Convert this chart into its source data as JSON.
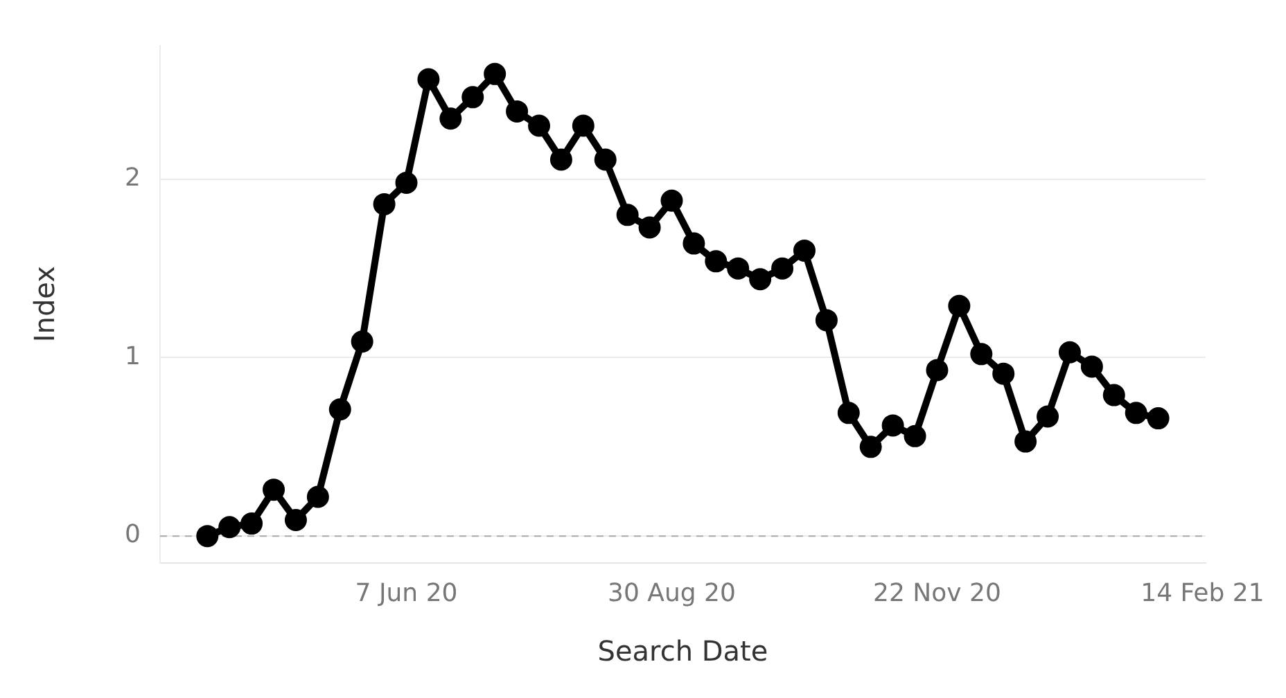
{
  "chart_data": {
    "type": "line",
    "xlabel": "Search Date",
    "ylabel": "Index",
    "x": [
      "2020-04-05",
      "2020-04-12",
      "2020-04-19",
      "2020-04-26",
      "2020-05-03",
      "2020-05-10",
      "2020-05-17",
      "2020-05-24",
      "2020-05-31",
      "2020-06-07",
      "2020-06-14",
      "2020-06-21",
      "2020-06-28",
      "2020-07-05",
      "2020-07-12",
      "2020-07-19",
      "2020-07-26",
      "2020-08-02",
      "2020-08-09",
      "2020-08-16",
      "2020-08-23",
      "2020-08-30",
      "2020-09-06",
      "2020-09-13",
      "2020-09-20",
      "2020-09-27",
      "2020-10-04",
      "2020-10-11",
      "2020-10-18",
      "2020-10-25",
      "2020-11-01",
      "2020-11-08",
      "2020-11-15",
      "2020-11-22",
      "2020-11-29",
      "2020-12-06",
      "2020-12-13",
      "2020-12-20",
      "2020-12-27",
      "2021-01-03",
      "2021-01-10",
      "2021-01-17",
      "2021-01-24",
      "2021-01-31"
    ],
    "series": [
      {
        "color": "#000000",
        "values": [
          0.0,
          0.05,
          0.07,
          0.26,
          0.09,
          0.22,
          0.71,
          1.09,
          1.86,
          1.98,
          2.56,
          2.34,
          2.46,
          2.59,
          2.38,
          2.3,
          2.11,
          2.3,
          2.11,
          1.8,
          1.73,
          1.88,
          1.64,
          1.54,
          1.5,
          1.44,
          1.5,
          1.6,
          1.21,
          0.69,
          0.5,
          0.62,
          0.56,
          0.93,
          1.29,
          1.02,
          0.91,
          0.53,
          0.67,
          1.03,
          0.95,
          0.79,
          0.69,
          0.66
        ]
      }
    ],
    "xlim": [
      "2020-03-21",
      "2021-02-15"
    ],
    "xticks": [
      {
        "value": "2020-06-07",
        "label": "7 Jun 20"
      },
      {
        "value": "2020-08-30",
        "label": "30 Aug 20"
      },
      {
        "value": "2020-11-22",
        "label": "22 Nov 20"
      },
      {
        "value": "2021-02-14",
        "label": "14 Feb 21"
      }
    ],
    "ylim": [
      -0.15,
      2.75
    ],
    "yticks": [
      0,
      1,
      2
    ],
    "ref_lines": [
      {
        "axis": "y",
        "value": 0,
        "color": "#aaaaaa",
        "line_style": "dashed"
      }
    ],
    "grid": "y",
    "legend": false,
    "marker": "circle",
    "line_style": "solid"
  }
}
